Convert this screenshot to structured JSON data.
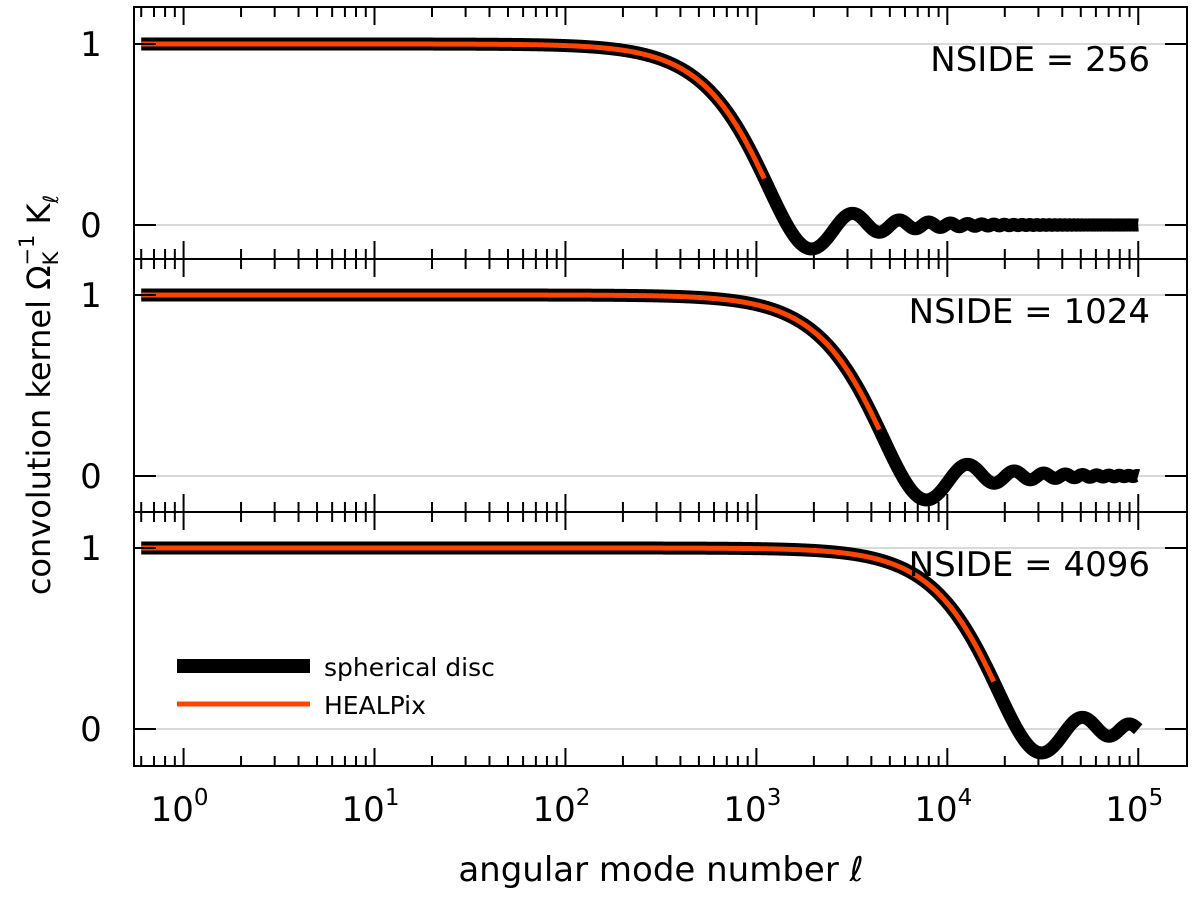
{
  "chart_data": {
    "type": "line",
    "xlabel": "angular mode number ℓ",
    "ylabel": {
      "prefix": "convolution kernel Ω",
      "sub1": "K",
      "sup1": "−1",
      "mid": " K",
      "sub2": "ℓ"
    },
    "x_scale": "log",
    "xlim": [
      0.55,
      180000
    ],
    "x_ticks": [
      1,
      10,
      100,
      1000,
      10000,
      100000
    ],
    "x_tick_labels": [
      {
        "base": "10",
        "exp": "0"
      },
      {
        "base": "10",
        "exp": "1"
      },
      {
        "base": "10",
        "exp": "2"
      },
      {
        "base": "10",
        "exp": "3"
      },
      {
        "base": "10",
        "exp": "4"
      },
      {
        "base": "10",
        "exp": "5"
      }
    ],
    "grid": "horizontal lines at y = 0 and y = 1",
    "legend": {
      "placement": "lower-left of bottom panel",
      "entries": [
        {
          "label": "spherical disc",
          "color": "#000000"
        },
        {
          "label": "HEALPix",
          "color": "#ff4500"
        }
      ]
    },
    "panels": [
      {
        "label": "NSIDE = 256",
        "ylim": [
          -0.22,
          1.18
        ],
        "y_ticks": [
          0,
          1
        ],
        "y_tick_labels": [
          "0",
          "1"
        ],
        "series": [
          {
            "name": "spherical disc",
            "x_range": [
              0.6,
              100000
            ],
            "model": "2·J1(ℓθ)/(ℓθ)",
            "first_zero_at_l": 1450
          },
          {
            "name": "HEALPix",
            "x_range": [
              0.6,
              1100
            ],
            "model": "follows spherical disc"
          }
        ]
      },
      {
        "label": "NSIDE = 1024",
        "ylim": [
          -0.22,
          1.18
        ],
        "y_ticks": [
          0,
          1
        ],
        "y_tick_labels": [
          "0",
          "1"
        ],
        "series": [
          {
            "name": "spherical disc",
            "x_range": [
              0.6,
              100000
            ],
            "model": "2·J1(ℓθ)/(ℓθ)",
            "first_zero_at_l": 5800
          },
          {
            "name": "HEALPix",
            "x_range": [
              0.6,
              4400
            ],
            "model": "follows spherical disc"
          }
        ]
      },
      {
        "label": "NSIDE = 4096",
        "ylim": [
          -0.22,
          1.18
        ],
        "y_ticks": [
          0,
          1
        ],
        "y_tick_labels": [
          "0",
          "1"
        ],
        "series": [
          {
            "name": "spherical disc",
            "x_range": [
              0.6,
              100000
            ],
            "model": "2·J1(ℓθ)/(ℓθ)",
            "first_zero_at_l": 23200
          },
          {
            "name": "HEALPix",
            "x_range": [
              0.6,
              17500
            ],
            "model": "follows spherical disc"
          }
        ]
      }
    ]
  },
  "colors": {
    "disc": "#000000",
    "healpix": "#ff4500",
    "grid": "#d9d9d9",
    "axes": "#000000"
  }
}
